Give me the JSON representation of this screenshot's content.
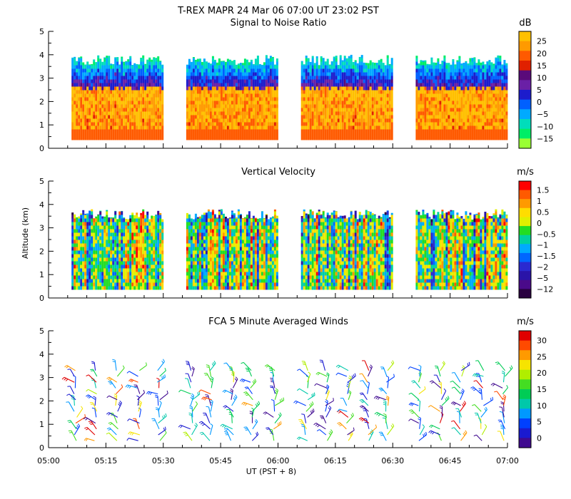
{
  "header": {
    "title": "T-REX   MAPR 24 Mar 06   07:00 UT   23:02   PST"
  },
  "axes": {
    "ylabel": "Altitude (km)",
    "xlabel": "UT  (PST + 8)",
    "x_ticks": [
      "05:00",
      "05:15",
      "05:30",
      "05:45",
      "06:00",
      "06:15",
      "06:30",
      "06:45",
      "07:00"
    ],
    "y_ticks": [
      "0",
      "1",
      "2",
      "3",
      "4",
      "5"
    ]
  },
  "chart_data": [
    {
      "type": "heatmap",
      "title": "Signal to Noise Ratio",
      "xlim": [
        "05:00",
        "07:00"
      ],
      "ylim": [
        0,
        5
      ],
      "data_blocks_ut": [
        [
          "05:06",
          "05:30"
        ],
        [
          "05:36",
          "06:00"
        ],
        [
          "06:06",
          "06:30"
        ],
        [
          "06:36",
          "07:00"
        ]
      ],
      "altitude_range_km": [
        0.35,
        4.0
      ],
      "colorbar": {
        "unit": "dB",
        "labels": [
          "25",
          "20",
          "15",
          "10",
          "5",
          "0",
          "−5",
          "−10",
          "−15"
        ],
        "colors": [
          "#ffc000",
          "#ff9a00",
          "#ff5a00",
          "#e02000",
          "#5a0a7a",
          "#6a20a6",
          "#1c1ccc",
          "#0060ff",
          "#00aaff",
          "#00ddbb",
          "#00ee66",
          "#99ff33"
        ]
      }
    },
    {
      "type": "heatmap",
      "title": "Vertical Velocity",
      "xlim": [
        "05:00",
        "07:00"
      ],
      "ylim": [
        0,
        5
      ],
      "data_blocks_ut": [
        [
          "05:06",
          "05:30"
        ],
        [
          "05:36",
          "06:00"
        ],
        [
          "06:06",
          "06:30"
        ],
        [
          "06:36",
          "07:00"
        ]
      ],
      "altitude_range_km": [
        0.35,
        3.8
      ],
      "colorbar": {
        "unit": "m/s",
        "labels": [
          "1.5",
          "1",
          "0.5",
          "0",
          "−0.5",
          "−1",
          "−1.5",
          "−2",
          "−5",
          "−12"
        ],
        "colors": [
          "#ff0000",
          "#ff5a00",
          "#ff9a00",
          "#ffdd00",
          "#e0f000",
          "#22dd22",
          "#00d0a0",
          "#00aaff",
          "#0066ff",
          "#2a2ad0",
          "#2a14a8",
          "#4a0a8a",
          "#2a0040"
        ]
      }
    },
    {
      "type": "scatter",
      "title": "FCA 5 Minute Averaged Winds",
      "xlim": [
        "05:00",
        "07:00"
      ],
      "ylim": [
        0,
        5
      ],
      "data_blocks_ut": [
        [
          "05:06",
          "05:30"
        ],
        [
          "05:36",
          "06:00"
        ],
        [
          "06:06",
          "06:30"
        ],
        [
          "06:36",
          "07:00"
        ]
      ],
      "altitude_range_km": [
        0.3,
        3.3
      ],
      "colorbar": {
        "unit": "m/s",
        "labels": [
          "30",
          "25",
          "20",
          "15",
          "10",
          "5",
          "0"
        ],
        "colors": [
          "#e00000",
          "#ff4a00",
          "#ff9a00",
          "#f6e400",
          "#b0ee00",
          "#44dd22",
          "#00cc55",
          "#00c8aa",
          "#0098ff",
          "#0040ff",
          "#1a1ad0",
          "#400a90"
        ]
      }
    }
  ]
}
